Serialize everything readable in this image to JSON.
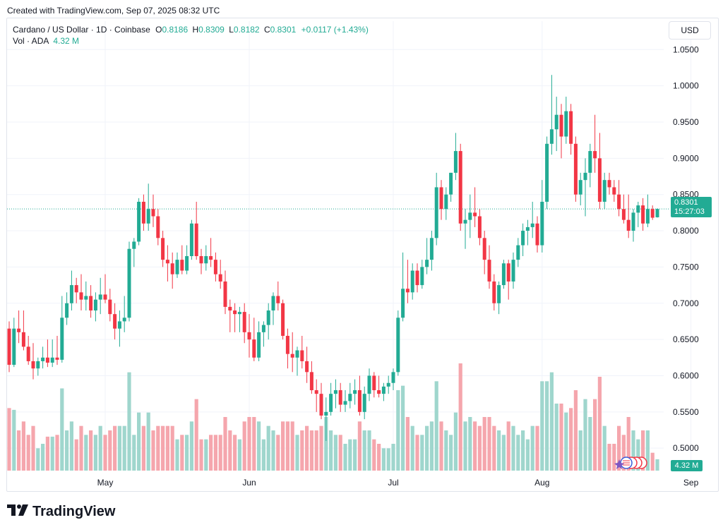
{
  "banner": "Created with TradingView.com, Sep 07, 2025 08:32 UTC",
  "legend": {
    "title": "Cardano / US Dollar · 1D · Coinbase",
    "open_label": "O",
    "open": "0.8186",
    "high_label": "H",
    "high": "0.8309",
    "low_label": "L",
    "low": "0.8182",
    "close_label": "C",
    "close": "0.8301",
    "change": "+0.0117 (+1.43%)"
  },
  "volume_legend": {
    "label": "Vol · ADA",
    "value": "4.32 M"
  },
  "currency": "USD",
  "price_tag": {
    "price": "0.8301",
    "countdown": "15:27:03"
  },
  "volume_tag": "4.32 M",
  "brand": "TradingView",
  "colors": {
    "up": "#22ab94",
    "down": "#f23645",
    "up_volume": "#9fd6cd",
    "down_volume": "#f5a6ad",
    "grid": "#f0f3fa",
    "price_line": "#22ab94"
  },
  "chart_data": {
    "type": "candlestick",
    "title": "Cardano / US Dollar · 1D · Coinbase",
    "y_axis": {
      "ticks": [
        "1.0500",
        "1.0000",
        "0.9500",
        "0.9000",
        "0.8500",
        "0.8000",
        "0.7500",
        "0.7000",
        "0.6500",
        "0.6000",
        "0.5500",
        "0.5000"
      ],
      "tick_values": [
        1.05,
        1.0,
        0.95,
        0.9,
        0.85,
        0.8,
        0.75,
        0.7,
        0.65,
        0.6,
        0.55,
        0.5
      ],
      "range": [
        0.47,
        1.06
      ]
    },
    "x_axis": {
      "labels": [
        "May",
        "Jun",
        "Jul",
        "Aug",
        "Sep"
      ],
      "label_bar_index": [
        20,
        50,
        80,
        111,
        142
      ]
    },
    "last_price": 0.8301,
    "candles": [
      [
        0.665,
        0.675,
        0.605,
        0.615
      ],
      [
        0.615,
        0.68,
        0.612,
        0.665
      ],
      [
        0.665,
        0.69,
        0.645,
        0.66
      ],
      [
        0.66,
        0.69,
        0.635,
        0.64
      ],
      [
        0.64,
        0.655,
        0.615,
        0.62
      ],
      [
        0.62,
        0.645,
        0.595,
        0.61
      ],
      [
        0.61,
        0.625,
        0.6,
        0.62
      ],
      [
        0.62,
        0.64,
        0.61,
        0.625
      ],
      [
        0.625,
        0.65,
        0.612,
        0.618
      ],
      [
        0.618,
        0.65,
        0.612,
        0.625
      ],
      [
        0.625,
        0.655,
        0.615,
        0.622
      ],
      [
        0.622,
        0.71,
        0.618,
        0.68
      ],
      [
        0.68,
        0.715,
        0.67,
        0.7
      ],
      [
        0.7,
        0.745,
        0.69,
        0.725
      ],
      [
        0.725,
        0.735,
        0.7,
        0.715
      ],
      [
        0.715,
        0.74,
        0.69,
        0.705
      ],
      [
        0.705,
        0.73,
        0.69,
        0.71
      ],
      [
        0.71,
        0.725,
        0.68,
        0.69
      ],
      [
        0.69,
        0.715,
        0.675,
        0.705
      ],
      [
        0.705,
        0.735,
        0.685,
        0.712
      ],
      [
        0.712,
        0.74,
        0.7,
        0.705
      ],
      [
        0.705,
        0.72,
        0.675,
        0.685
      ],
      [
        0.685,
        0.7,
        0.65,
        0.665
      ],
      [
        0.665,
        0.69,
        0.64,
        0.675
      ],
      [
        0.675,
        0.71,
        0.66,
        0.68
      ],
      [
        0.68,
        0.785,
        0.675,
        0.775
      ],
      [
        0.775,
        0.79,
        0.75,
        0.785
      ],
      [
        0.785,
        0.845,
        0.78,
        0.84
      ],
      [
        0.84,
        0.85,
        0.8,
        0.81
      ],
      [
        0.81,
        0.865,
        0.8,
        0.83
      ],
      [
        0.83,
        0.85,
        0.805,
        0.82
      ],
      [
        0.82,
        0.83,
        0.78,
        0.79
      ],
      [
        0.79,
        0.8,
        0.75,
        0.76
      ],
      [
        0.76,
        0.78,
        0.73,
        0.755
      ],
      [
        0.755,
        0.77,
        0.72,
        0.74
      ],
      [
        0.74,
        0.77,
        0.735,
        0.76
      ],
      [
        0.76,
        0.78,
        0.74,
        0.745
      ],
      [
        0.745,
        0.78,
        0.74,
        0.765
      ],
      [
        0.765,
        0.815,
        0.76,
        0.81
      ],
      [
        0.81,
        0.84,
        0.76,
        0.765
      ],
      [
        0.765,
        0.775,
        0.74,
        0.755
      ],
      [
        0.755,
        0.78,
        0.745,
        0.765
      ],
      [
        0.765,
        0.79,
        0.75,
        0.76
      ],
      [
        0.76,
        0.77,
        0.73,
        0.74
      ],
      [
        0.74,
        0.76,
        0.72,
        0.73
      ],
      [
        0.73,
        0.745,
        0.685,
        0.695
      ],
      [
        0.695,
        0.705,
        0.66,
        0.69
      ],
      [
        0.69,
        0.7,
        0.66,
        0.685
      ],
      [
        0.685,
        0.695,
        0.66,
        0.688
      ],
      [
        0.688,
        0.7,
        0.645,
        0.66
      ],
      [
        0.66,
        0.685,
        0.625,
        0.65
      ],
      [
        0.65,
        0.68,
        0.62,
        0.625
      ],
      [
        0.625,
        0.675,
        0.62,
        0.66
      ],
      [
        0.66,
        0.675,
        0.64,
        0.67
      ],
      [
        0.67,
        0.7,
        0.65,
        0.69
      ],
      [
        0.69,
        0.715,
        0.67,
        0.71
      ],
      [
        0.71,
        0.73,
        0.69,
        0.7
      ],
      [
        0.7,
        0.705,
        0.65,
        0.655
      ],
      [
        0.655,
        0.665,
        0.61,
        0.63
      ],
      [
        0.63,
        0.66,
        0.605,
        0.625
      ],
      [
        0.625,
        0.64,
        0.6,
        0.635
      ],
      [
        0.635,
        0.655,
        0.61,
        0.62
      ],
      [
        0.62,
        0.64,
        0.59,
        0.605
      ],
      [
        0.605,
        0.62,
        0.575,
        0.58
      ],
      [
        0.58,
        0.595,
        0.55,
        0.575
      ],
      [
        0.575,
        0.59,
        0.54,
        0.545
      ],
      [
        0.545,
        0.57,
        0.51,
        0.55
      ],
      [
        0.55,
        0.59,
        0.545,
        0.575
      ],
      [
        0.575,
        0.595,
        0.555,
        0.58
      ],
      [
        0.58,
        0.59,
        0.55,
        0.56
      ],
      [
        0.56,
        0.58,
        0.55,
        0.565
      ],
      [
        0.565,
        0.59,
        0.555,
        0.575
      ],
      [
        0.575,
        0.595,
        0.56,
        0.58
      ],
      [
        0.58,
        0.6,
        0.545,
        0.55
      ],
      [
        0.55,
        0.585,
        0.54,
        0.575
      ],
      [
        0.575,
        0.61,
        0.565,
        0.6
      ],
      [
        0.6,
        0.605,
        0.57,
        0.58
      ],
      [
        0.58,
        0.6,
        0.57,
        0.575
      ],
      [
        0.575,
        0.59,
        0.565,
        0.585
      ],
      [
        0.585,
        0.6,
        0.575,
        0.59
      ],
      [
        0.59,
        0.61,
        0.58,
        0.605
      ],
      [
        0.605,
        0.69,
        0.6,
        0.68
      ],
      [
        0.68,
        0.77,
        0.675,
        0.72
      ],
      [
        0.72,
        0.76,
        0.7,
        0.715
      ],
      [
        0.715,
        0.755,
        0.705,
        0.745
      ],
      [
        0.745,
        0.755,
        0.715,
        0.725
      ],
      [
        0.725,
        0.76,
        0.72,
        0.75
      ],
      [
        0.75,
        0.79,
        0.74,
        0.76
      ],
      [
        0.76,
        0.8,
        0.745,
        0.79
      ],
      [
        0.79,
        0.88,
        0.78,
        0.86
      ],
      [
        0.86,
        0.87,
        0.815,
        0.83
      ],
      [
        0.83,
        0.86,
        0.815,
        0.85
      ],
      [
        0.85,
        0.88,
        0.84,
        0.88
      ],
      [
        0.88,
        0.935,
        0.87,
        0.91
      ],
      [
        0.91,
        0.92,
        0.8,
        0.81
      ],
      [
        0.81,
        0.83,
        0.775,
        0.815
      ],
      [
        0.815,
        0.85,
        0.79,
        0.825
      ],
      [
        0.825,
        0.86,
        0.805,
        0.82
      ],
      [
        0.82,
        0.83,
        0.78,
        0.79
      ],
      [
        0.79,
        0.8,
        0.74,
        0.76
      ],
      [
        0.76,
        0.78,
        0.72,
        0.73
      ],
      [
        0.73,
        0.74,
        0.69,
        0.7
      ],
      [
        0.7,
        0.73,
        0.685,
        0.725
      ],
      [
        0.725,
        0.76,
        0.72,
        0.755
      ],
      [
        0.755,
        0.76,
        0.705,
        0.73
      ],
      [
        0.73,
        0.77,
        0.72,
        0.76
      ],
      [
        0.76,
        0.79,
        0.75,
        0.78
      ],
      [
        0.78,
        0.81,
        0.765,
        0.8
      ],
      [
        0.8,
        0.815,
        0.78,
        0.805
      ],
      [
        0.805,
        0.84,
        0.79,
        0.81
      ],
      [
        0.81,
        0.82,
        0.77,
        0.78
      ],
      [
        0.78,
        0.87,
        0.77,
        0.84
      ],
      [
        0.84,
        0.93,
        0.83,
        0.92
      ],
      [
        0.92,
        1.015,
        0.905,
        0.94
      ],
      [
        0.94,
        0.985,
        0.91,
        0.96
      ],
      [
        0.96,
        0.975,
        0.9,
        0.93
      ],
      [
        0.93,
        0.985,
        0.92,
        0.965
      ],
      [
        0.965,
        0.975,
        0.905,
        0.92
      ],
      [
        0.92,
        0.93,
        0.84,
        0.85
      ],
      [
        0.85,
        0.88,
        0.835,
        0.87
      ],
      [
        0.87,
        0.9,
        0.82,
        0.88
      ],
      [
        0.88,
        0.92,
        0.86,
        0.91
      ],
      [
        0.91,
        0.96,
        0.88,
        0.9
      ],
      [
        0.9,
        0.935,
        0.83,
        0.84
      ],
      [
        0.84,
        0.88,
        0.83,
        0.87
      ],
      [
        0.87,
        0.88,
        0.85,
        0.86
      ],
      [
        0.86,
        0.87,
        0.84,
        0.85
      ],
      [
        0.85,
        0.87,
        0.82,
        0.83
      ],
      [
        0.83,
        0.85,
        0.81,
        0.815
      ],
      [
        0.815,
        0.85,
        0.79,
        0.8
      ],
      [
        0.8,
        0.83,
        0.785,
        0.825
      ],
      [
        0.825,
        0.84,
        0.805,
        0.835
      ],
      [
        0.835,
        0.845,
        0.8,
        0.81
      ],
      [
        0.81,
        0.85,
        0.805,
        0.83
      ],
      [
        0.83,
        0.835,
        0.815,
        0.818
      ],
      [
        0.8186,
        0.8309,
        0.8182,
        0.8301
      ]
    ],
    "volume": {
      "series_name": "Vol · ADA",
      "last_value": "4.32 M"
    }
  }
}
